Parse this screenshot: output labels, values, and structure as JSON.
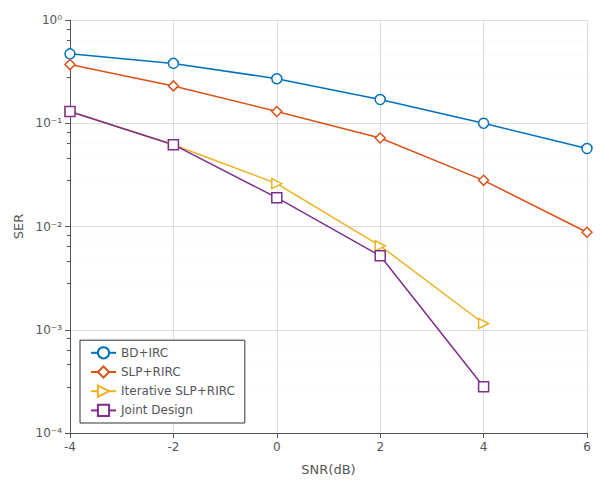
{
  "chart_data": {
    "type": "line",
    "xlabel": "SNR(dB)",
    "ylabel": "SER",
    "x": [
      -4,
      -2,
      0,
      2,
      4,
      6
    ],
    "xlim": [
      -4,
      6
    ],
    "xticks": [
      -4,
      -2,
      0,
      2,
      4,
      6
    ],
    "ylim": [
      0.0001,
      1
    ],
    "yticks": [
      {
        "value": 0.0001,
        "label": "10⁻⁴"
      },
      {
        "value": 0.001,
        "label": "10⁻³"
      },
      {
        "value": 0.01,
        "label": "10⁻²"
      },
      {
        "value": 0.1,
        "label": "10⁻¹"
      },
      {
        "value": 1,
        "label": "10⁰"
      }
    ],
    "log": "y",
    "grid": true,
    "legend": "lower left",
    "series": [
      {
        "name": "BD+IRC",
        "color": "#0072BD",
        "marker": "circle",
        "values": [
          0.47,
          0.38,
          0.27,
          0.17,
          0.1,
          0.057
        ]
      },
      {
        "name": "SLP+RIRC",
        "color": "#D95319",
        "marker": "diamond",
        "values": [
          0.37,
          0.23,
          0.13,
          0.072,
          0.028,
          0.0088
        ]
      },
      {
        "name": "Iterative SLP+RIRC",
        "color": "#EDB120",
        "marker": "triangle-right",
        "values": [
          0.13,
          0.062,
          0.026,
          0.0065,
          0.00115,
          null
        ]
      },
      {
        "name": "Joint Design",
        "color": "#7E2F8E",
        "marker": "square",
        "values": [
          0.13,
          0.062,
          0.019,
          0.0052,
          0.00028,
          null
        ]
      }
    ]
  }
}
